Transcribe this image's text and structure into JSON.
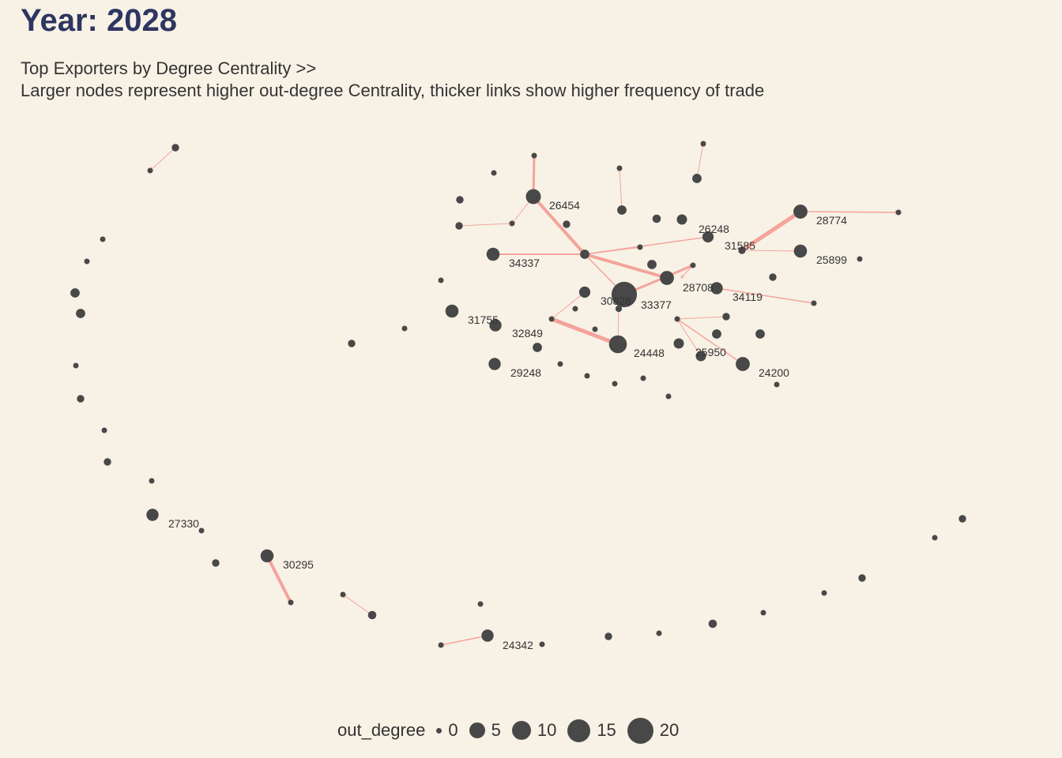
{
  "chart_data": {
    "type": "network",
    "title": "Year: 2028",
    "subtitle_line1": "Top Exporters by Degree Centrality >>",
    "subtitle_line2": "Larger nodes represent higher out-degree Centrality, thicker links show higher frequency of trade",
    "colors": {
      "background": "#f8f2e6",
      "title": "#2e3560",
      "node": "#484848",
      "edge": "#f4a39b",
      "text": "#333333"
    },
    "labeled_nodes": [
      {
        "id": "26454",
        "out_degree": 10
      },
      {
        "id": "28774",
        "out_degree": 9
      },
      {
        "id": "26248",
        "out_degree": 6
      },
      {
        "id": "31585",
        "out_degree": 2
      },
      {
        "id": "25899",
        "out_degree": 8
      },
      {
        "id": "34337",
        "out_degree": 8
      },
      {
        "id": "28708",
        "out_degree": 9
      },
      {
        "id": "34119",
        "out_degree": 7
      },
      {
        "id": "30828",
        "out_degree": 21
      },
      {
        "id": "33377",
        "out_degree": 1
      },
      {
        "id": "31755",
        "out_degree": 8
      },
      {
        "id": "32849",
        "out_degree": 7
      },
      {
        "id": "24448",
        "out_degree": 13
      },
      {
        "id": "25950",
        "out_degree": 5
      },
      {
        "id": "24200",
        "out_degree": 9
      },
      {
        "id": "29248",
        "out_degree": 7
      },
      {
        "id": "27330",
        "out_degree": 7
      },
      {
        "id": "30295",
        "out_degree": 8
      },
      {
        "id": "24342",
        "out_degree": 7
      }
    ],
    "legend": {
      "title": "out_degree",
      "values": [
        "0",
        "5",
        "10",
        "15",
        "20"
      ]
    }
  }
}
